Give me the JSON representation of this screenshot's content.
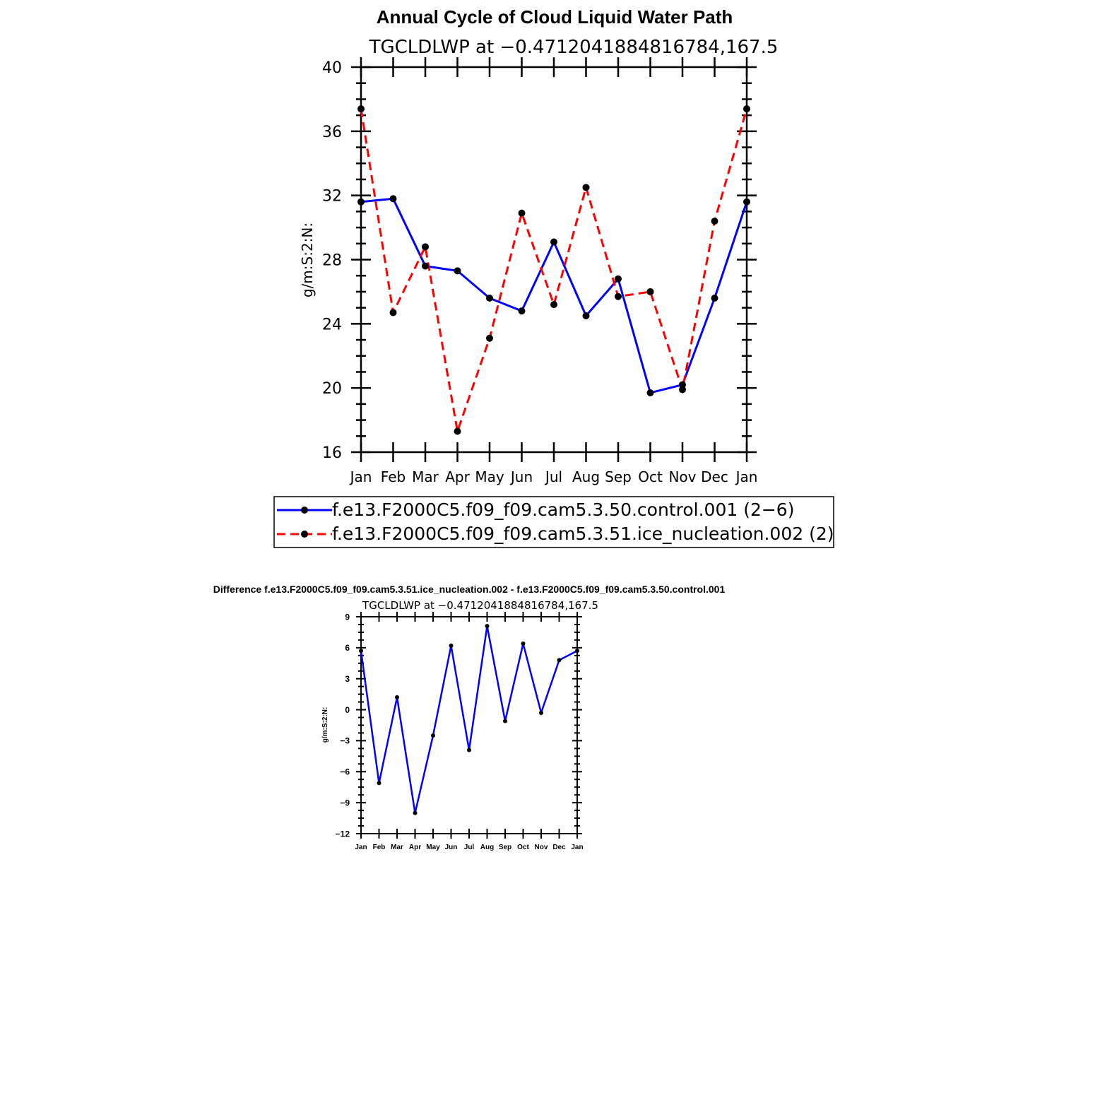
{
  "chart_data": [
    {
      "type": "line",
      "title": "Annual Cycle of Cloud Liquid Water Path",
      "subtitle": "TGCLDLWP  at  −0.4712041884816784,167.5",
      "ylabel": "g/m:S:2:N:",
      "xlabel": "",
      "ylim": [
        16,
        40
      ],
      "yticks": [
        "16",
        "20",
        "24",
        "28",
        "32",
        "36",
        "40"
      ],
      "categories": [
        "Jan",
        "Feb",
        "Mar",
        "Apr",
        "May",
        "Jun",
        "Jul",
        "Aug",
        "Sep",
        "Oct",
        "Nov",
        "Dec",
        "Jan"
      ],
      "series": [
        {
          "name": "f.e13.F2000C5.f09_f09.cam5.3.50.control.001 (2−6)",
          "color": "#0000ff",
          "dash": "solid",
          "values": [
            31.6,
            31.8,
            27.6,
            27.3,
            25.6,
            24.8,
            29.1,
            24.5,
            26.8,
            19.7,
            20.2,
            25.6,
            31.6
          ]
        },
        {
          "name": "f.e13.F2000C5.f09_f09.cam5.3.51.ice_nucleation.002 (2)",
          "color": "#ff0000",
          "dash": "dashed",
          "values": [
            37.4,
            24.7,
            28.8,
            17.3,
            23.1,
            30.9,
            25.2,
            32.5,
            25.7,
            26.0,
            19.9,
            30.4,
            37.4
          ]
        }
      ]
    },
    {
      "type": "line",
      "title": "Difference f.e13.F2000C5.f09_f09.cam5.3.51.ice_nucleation.002 - f.e13.F2000C5.f09_f09.cam5.3.50.control.001",
      "subtitle": "TGCLDLWP  at  −0.4712041884816784,167.5",
      "ylabel": "g/m:S:2:N:",
      "xlabel": "",
      "ylim": [
        -12,
        9
      ],
      "yticks": [
        "−12",
        "−9",
        "−6",
        "−3",
        "0",
        "3",
        "6",
        "9"
      ],
      "categories": [
        "Jan",
        "Feb",
        "Mar",
        "Apr",
        "May",
        "Jun",
        "Jul",
        "Aug",
        "Sep",
        "Oct",
        "Nov",
        "Dec",
        "Jan"
      ],
      "series": [
        {
          "name": "difference",
          "color": "#0000ff",
          "dash": "solid",
          "values": [
            5.7,
            -7.1,
            1.2,
            -10.0,
            -2.5,
            6.2,
            -3.9,
            8.1,
            -1.1,
            6.4,
            -0.3,
            4.8,
            5.7
          ]
        }
      ]
    }
  ]
}
